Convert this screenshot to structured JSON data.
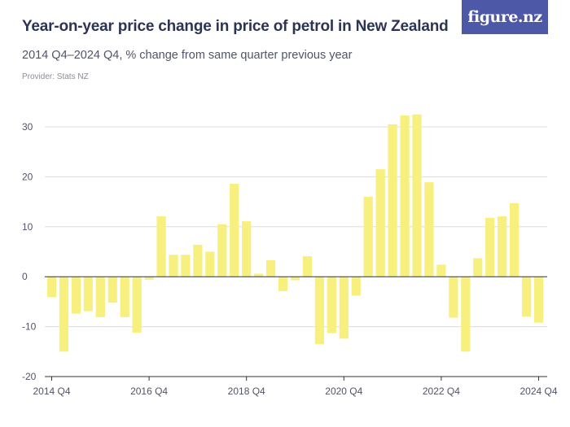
{
  "header": {
    "title": "Year-on-year price change in price of petrol in New Zealand",
    "subtitle": "2014 Q4–2024 Q4, % change from same quarter previous year",
    "provider": "Provider: Stats NZ",
    "logo_text": "figure.nz"
  },
  "colors": {
    "bar": "#f7ef7e",
    "grid": "#dcdcdc",
    "zero_line": "#333333",
    "logo_bg": "#4d58a6",
    "title": "#2c3454"
  },
  "chart_data": {
    "type": "bar",
    "title": "Year-on-year price change in price of petrol in New Zealand",
    "subtitle": "2014 Q4–2024 Q4, % change from same quarter previous year",
    "xlabel": "",
    "ylabel": "",
    "ylim": [
      -20,
      35
    ],
    "yticks": [
      -20,
      -10,
      0,
      10,
      20,
      30
    ],
    "ytick_labels": [
      "-20",
      "-10",
      "0",
      "10",
      "20",
      "30"
    ],
    "xtick_labels": [
      "2014 Q4",
      "2016 Q4",
      "2018 Q4",
      "2020 Q4",
      "2022 Q4",
      "2024 Q4"
    ],
    "xtick_indices": [
      0,
      8,
      16,
      24,
      32,
      40
    ],
    "grid": true,
    "legend": "none",
    "categories": [
      "2014 Q4",
      "2015 Q1",
      "2015 Q2",
      "2015 Q3",
      "2015 Q4",
      "2016 Q1",
      "2016 Q2",
      "2016 Q3",
      "2016 Q4",
      "2017 Q1",
      "2017 Q2",
      "2017 Q3",
      "2017 Q4",
      "2018 Q1",
      "2018 Q2",
      "2018 Q3",
      "2018 Q4",
      "2019 Q1",
      "2019 Q2",
      "2019 Q3",
      "2019 Q4",
      "2020 Q1",
      "2020 Q2",
      "2020 Q3",
      "2020 Q4",
      "2021 Q1",
      "2021 Q2",
      "2021 Q3",
      "2021 Q4",
      "2022 Q1",
      "2022 Q2",
      "2022 Q3",
      "2022 Q4",
      "2023 Q1",
      "2023 Q2",
      "2023 Q3",
      "2023 Q4",
      "2024 Q1",
      "2024 Q2",
      "2024 Q3",
      "2024 Q4"
    ],
    "values": [
      -4.1,
      -15.0,
      -7.4,
      -6.9,
      -8.1,
      -5.2,
      -8.1,
      -11.2,
      -0.6,
      12.1,
      4.4,
      4.4,
      6.4,
      5.0,
      10.5,
      18.6,
      11.1,
      0.6,
      3.3,
      -2.9,
      -0.7,
      4.1,
      -13.5,
      -11.3,
      -12.4,
      -3.8,
      16.0,
      21.5,
      30.5,
      32.3,
      32.5,
      18.9,
      2.4,
      -8.2,
      -15.0,
      3.7,
      11.8,
      12.1,
      14.7,
      -8.0,
      -9.2
    ]
  }
}
